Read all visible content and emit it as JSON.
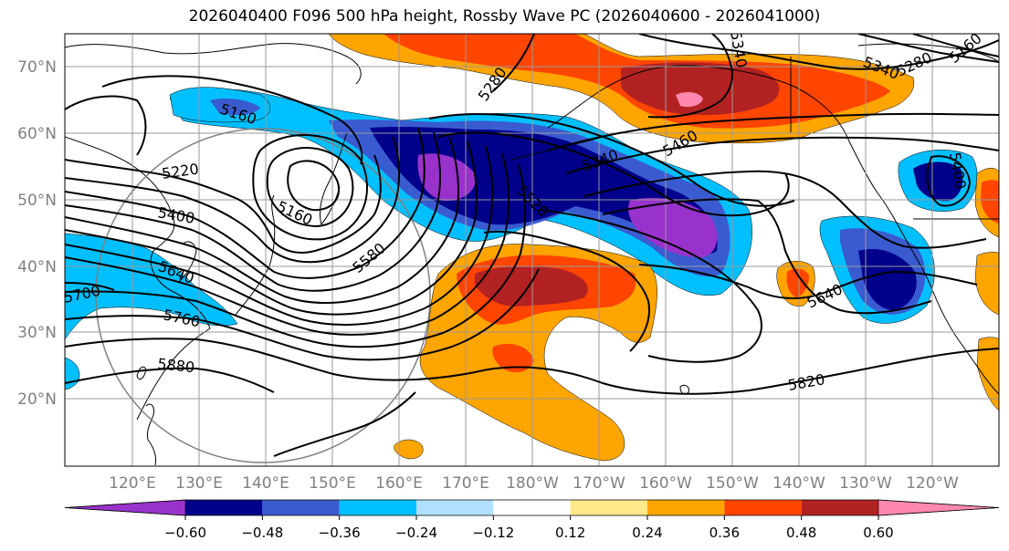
{
  "title": "2026040400 F096 500 hPa height, Rossby Wave PC (2026040600 - 2026041000)",
  "lat_labels": [
    "70°N",
    "60°N",
    "50°N",
    "40°N",
    "30°N",
    "20°N"
  ],
  "lon_labels": [
    "120°E",
    "130°E",
    "140°E",
    "150°E",
    "160°E",
    "170°E",
    "180°W",
    "170°W",
    "160°W",
    "150°W",
    "140°W",
    "130°W",
    "120°W"
  ],
  "colorbar": {
    "colors": [
      "#9932cc",
      "#00008b",
      "#3a5bd0",
      "#00bfff",
      "#b0e0ff",
      "#ffffff",
      "#ffe88a",
      "#ffa500",
      "#ff4500",
      "#b22222",
      "#ff88b0"
    ],
    "tick_labels": [
      "−0.60",
      "−0.48",
      "−0.36",
      "−0.24",
      "−0.12",
      "0.12",
      "0.24",
      "0.36",
      "0.48",
      "0.60"
    ]
  },
  "contour_labels": [
    "5160",
    "5220",
    "5400",
    "5160",
    "5640",
    "5700",
    "5760",
    "5880",
    "5580",
    "5280",
    "5520",
    "5340",
    "5460",
    "5340",
    "5340",
    "5280",
    "5160",
    "5640",
    "5820",
    "5400"
  ],
  "colors": {
    "frame": "#000000",
    "grid": "#999999",
    "tick_text": "#808080",
    "contour": "#000000",
    "coast": "#000000"
  }
}
